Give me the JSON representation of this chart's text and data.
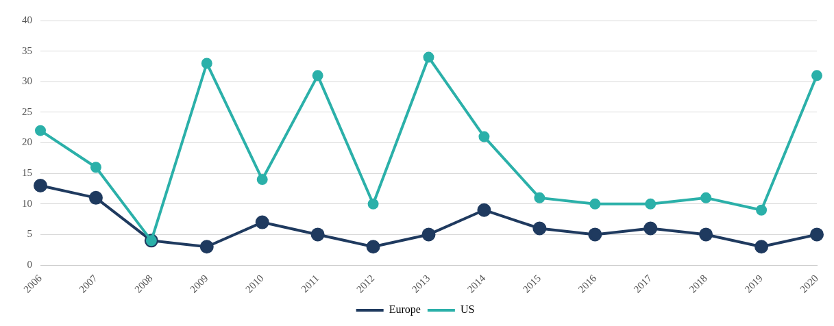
{
  "chart_data": {
    "type": "line",
    "categories": [
      "2006",
      "2007",
      "2008",
      "2009",
      "2010",
      "2011",
      "2012",
      "2013",
      "2014",
      "2015",
      "2016",
      "2017",
      "2018",
      "2019",
      "2020"
    ],
    "series": [
      {
        "name": "Europe",
        "color": "#1f3a5f",
        "values": [
          13,
          11,
          4,
          3,
          7,
          5,
          3,
          5,
          9,
          6,
          5,
          6,
          5,
          3,
          5
        ]
      },
      {
        "name": "US",
        "color": "#2bb0a9",
        "values": [
          22,
          16,
          4,
          33,
          14,
          31,
          10,
          34,
          21,
          11,
          10,
          10,
          11,
          9,
          31
        ]
      }
    ],
    "ylim": [
      0,
      40
    ],
    "yticks": [
      0,
      5,
      10,
      15,
      20,
      25,
      30,
      35,
      40
    ],
    "grid": "y",
    "legend": "bottom",
    "marker": "circle",
    "line_style": "solid"
  }
}
